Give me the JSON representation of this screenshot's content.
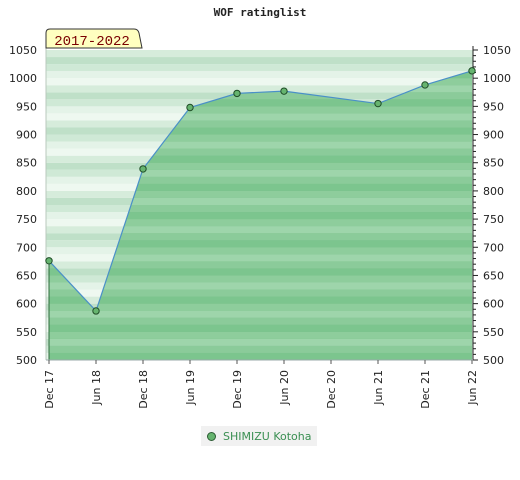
{
  "chart_title": "WOF ratinglist",
  "chart_data": {
    "type": "area",
    "title": "WOF ratinglist",
    "badge": "2017-2022",
    "x": [
      "Dec 17",
      "Jun 18",
      "Dec 18",
      "Jun 19",
      "Dec 19",
      "Jun 20",
      "Dec 20",
      "Jun 21",
      "Dec 21",
      "Jun 22"
    ],
    "series": [
      {
        "name": "SHIMIZU Kotoha",
        "points": [
          {
            "x": "Dec 17",
            "y": 676
          },
          {
            "x": "Jun 18",
            "y": 587
          },
          {
            "x": "Dec 18",
            "y": 839
          },
          {
            "x": "Jun 19",
            "y": 948
          },
          {
            "x": "Dec 19",
            "y": 973
          },
          {
            "x": "Jun 20",
            "y": 977
          },
          {
            "x": "Jun 21",
            "y": 955
          },
          {
            "x": "Dec 21",
            "y": 988
          },
          {
            "x": "Jun 22",
            "y": 1013
          }
        ]
      }
    ],
    "y_ticks": [
      500,
      550,
      600,
      650,
      700,
      750,
      800,
      850,
      900,
      950,
      1000,
      1050
    ],
    "ylim": [
      500,
      1050
    ],
    "y_axis_sides": "left and right",
    "legend_position": "bottom-center",
    "colors": {
      "fill": "#6fbc82",
      "line": "#4a90c8",
      "marker": "#66b46f",
      "badge_bg": "#ffffc0",
      "badge_text": "#7a0000"
    }
  }
}
